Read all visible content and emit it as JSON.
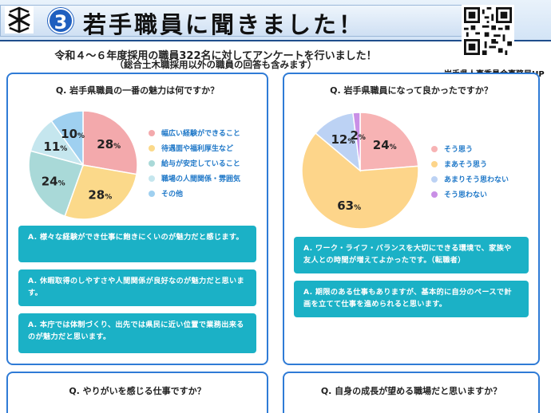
{
  "header": {
    "number": "3",
    "title": "若手職員に聞きました！",
    "qr_caption": "岩手県人事委員会事務局HP"
  },
  "intro": {
    "line1": "令和４～６年度採用の職員322名に対してアンケートを行いました！",
    "line2": "（総合土木職採用以外の職員の回答も含みます）"
  },
  "panels": [
    {
      "question": "Q. 岩手県職員の一番の魅力は何ですか？",
      "chart_data": {
        "type": "pie",
        "categories": [
          "幅広い経験ができること",
          "待遇面や福利厚生など",
          "給与が安定していること",
          "職場の人間関係・雰囲気",
          "その他"
        ],
        "values": [
          28,
          28,
          24,
          11,
          10
        ],
        "value_labels": [
          "28",
          "28",
          "24",
          "11",
          "10"
        ],
        "unit": "%",
        "colors": [
          "#f3a9ac",
          "#fbd98a",
          "#a9d9d8",
          "#c5e6ee",
          "#9fd0f0"
        ],
        "legend": "right"
      },
      "answers": [
        "A. 様々な経験ができ仕事に飽きにくいのが魅力だと感じます。",
        "A. 休暇取得のしやすさや人間関係が良好なのが魅力だと思います。",
        "A. 本庁では体制づくり、出先では県民に近い位置で業務出来るのが魅力だと思います。"
      ]
    },
    {
      "question": "Q. 岩手県職員になって良かったですか？",
      "chart_data": {
        "type": "pie",
        "categories": [
          "そう思う",
          "まあそう思う",
          "あまりそう思わない",
          "そう思わない"
        ],
        "values": [
          24,
          63,
          12,
          2
        ],
        "value_labels": [
          "24",
          "63",
          "12",
          "2"
        ],
        "unit": "%",
        "colors": [
          "#f7b3b4",
          "#fdd58a",
          "#bcd2f4",
          "#c98fe6"
        ],
        "legend": "right"
      },
      "answers": [
        "A. ワーク・ライフ・バランスを大切にできる環境で、家族や友人との時間が増えてよかったです。（転職者）",
        "A. 期限のある仕事もありますが、基本的に自分のペースで計画を立てて仕事を進められると思います。"
      ]
    }
  ],
  "bottom_questions": [
    "Q. やりがいを感じる仕事ですか？",
    "Q. 自身の成長が望める職場だと思いますか？"
  ]
}
